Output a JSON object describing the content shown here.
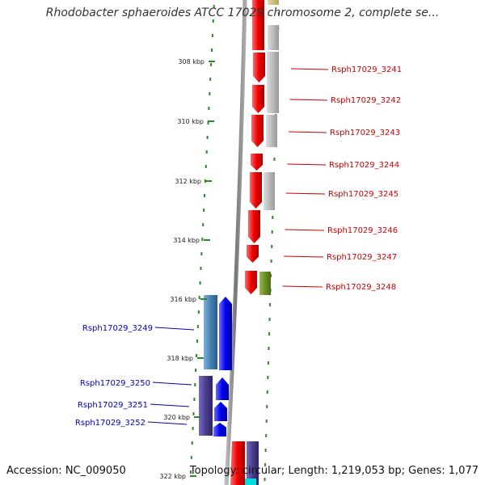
{
  "header": {
    "title": "Rhodobacter sphaeroides ATCC 17029 chromosome 2, complete se..."
  },
  "footer": {
    "accession": "Accession: NC_009050",
    "summary": "Topology: circular; Length: 1,219,053 bp; Genes: 1,077"
  },
  "ticks": [
    {
      "label": "308 kbp"
    },
    {
      "label": "310 kbp"
    },
    {
      "label": "312 kbp"
    },
    {
      "label": "314 kbp"
    },
    {
      "label": "316 kbp"
    },
    {
      "label": "318 kbp"
    },
    {
      "label": "320 kbp"
    },
    {
      "label": "322 kbp"
    }
  ],
  "genes_forward": [
    {
      "label": "Rsph17029_3241",
      "color": "#dd0000"
    },
    {
      "label": "Rsph17029_3242",
      "color": "#dd0000"
    },
    {
      "label": "Rsph17029_3243",
      "color": "#dd0000"
    },
    {
      "label": "Rsph17029_3244",
      "color": "#dd0000"
    },
    {
      "label": "Rsph17029_3245",
      "color": "#dd0000"
    },
    {
      "label": "Rsph17029_3246",
      "color": "#dd0000"
    },
    {
      "label": "Rsph17029_3247",
      "color": "#dd0000"
    },
    {
      "label": "Rsph17029_3248",
      "color": "#dd0000"
    }
  ],
  "genes_reverse": [
    {
      "label": "Rsph17029_3249",
      "color": "#0000ee"
    },
    {
      "label": "Rsph17029_3250",
      "color": "#0000ee"
    },
    {
      "label": "Rsph17029_3251",
      "color": "#0000ee"
    },
    {
      "label": "Rsph17029_3252",
      "color": "#0000ee"
    }
  ],
  "colors": {
    "backbone": "#888888",
    "dotted_ring": "#2a8a2a",
    "forward_label": "#cc0000",
    "reverse_label": "#0000bb",
    "cog_grey": "#bbbbbb",
    "cog_olive": "#6b8e23",
    "cog_steelblue": "#4682b4",
    "cog_slate": "#4b3d8f",
    "cog_khaki": "#c8c080",
    "cyan": "#00dddd"
  }
}
